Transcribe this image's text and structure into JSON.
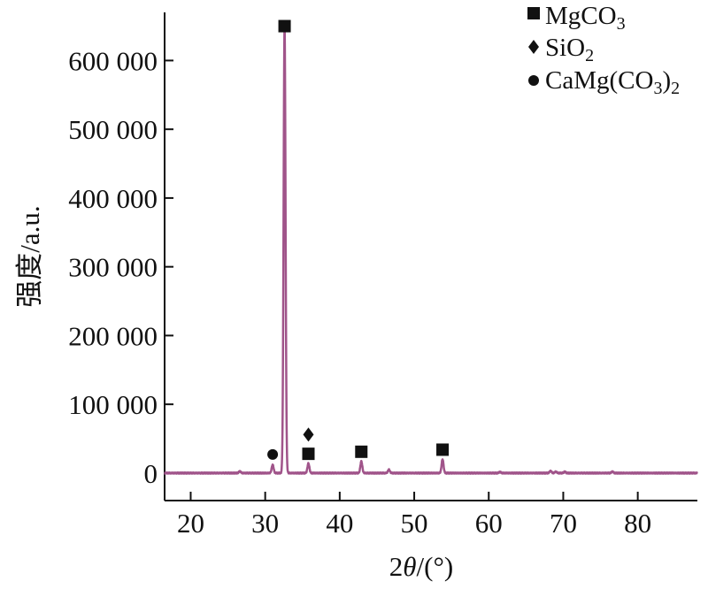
{
  "chart_data": {
    "type": "line",
    "xlabel": {
      "prefix": "2",
      "theta": "θ",
      "suffix": "/(°)"
    },
    "ylabel": "强度/a.u.",
    "xlim": [
      16.5,
      88
    ],
    "ylim": [
      -40000,
      670000
    ],
    "x_ticks": [
      20,
      30,
      40,
      50,
      60,
      70,
      80
    ],
    "x_tick_labels": [
      "20",
      "30",
      "40",
      "50",
      "60",
      "70",
      "80"
    ],
    "y_ticks": [
      0,
      100000,
      200000,
      300000,
      400000,
      500000,
      600000
    ],
    "y_tick_labels": [
      "0",
      "100 000",
      "200 000",
      "300 000",
      "400 000",
      "500 000",
      "600 000"
    ],
    "series": [
      {
        "color": "#a0548a",
        "baseline": 0,
        "peaks": [
          {
            "x": 26.6,
            "y": 2500
          },
          {
            "x": 31.0,
            "y": 12000
          },
          {
            "x": 32.6,
            "y": 650000
          },
          {
            "x": 35.8,
            "y": 14000
          },
          {
            "x": 42.9,
            "y": 17000
          },
          {
            "x": 46.6,
            "y": 5000
          },
          {
            "x": 53.8,
            "y": 20000
          },
          {
            "x": 61.5,
            "y": 1500
          },
          {
            "x": 68.3,
            "y": 3000
          },
          {
            "x": 69.0,
            "y": 2000
          },
          {
            "x": 70.2,
            "y": 1800
          },
          {
            "x": 76.6,
            "y": 2000
          }
        ]
      }
    ],
    "markers": [
      {
        "shape": "square",
        "x": 32.6,
        "y": 650000
      },
      {
        "shape": "square",
        "x": 35.8,
        "y": 28000
      },
      {
        "shape": "square",
        "x": 42.9,
        "y": 31000
      },
      {
        "shape": "square",
        "x": 53.8,
        "y": 34000
      },
      {
        "shape": "diamond",
        "x": 35.8,
        "y": 56000
      },
      {
        "shape": "circle",
        "x": 31.0,
        "y": 27000
      }
    ],
    "legend": {
      "placement": "top-right",
      "items": [
        {
          "shape": "square",
          "base": "MgCO",
          "sub": "3",
          "tail": ""
        },
        {
          "shape": "diamond",
          "base": "SiO",
          "sub": "2",
          "tail": ""
        },
        {
          "shape": "circle",
          "base": "CaMg(CO",
          "sub": "3",
          "tail": ")",
          "sub2": "2"
        }
      ]
    }
  }
}
